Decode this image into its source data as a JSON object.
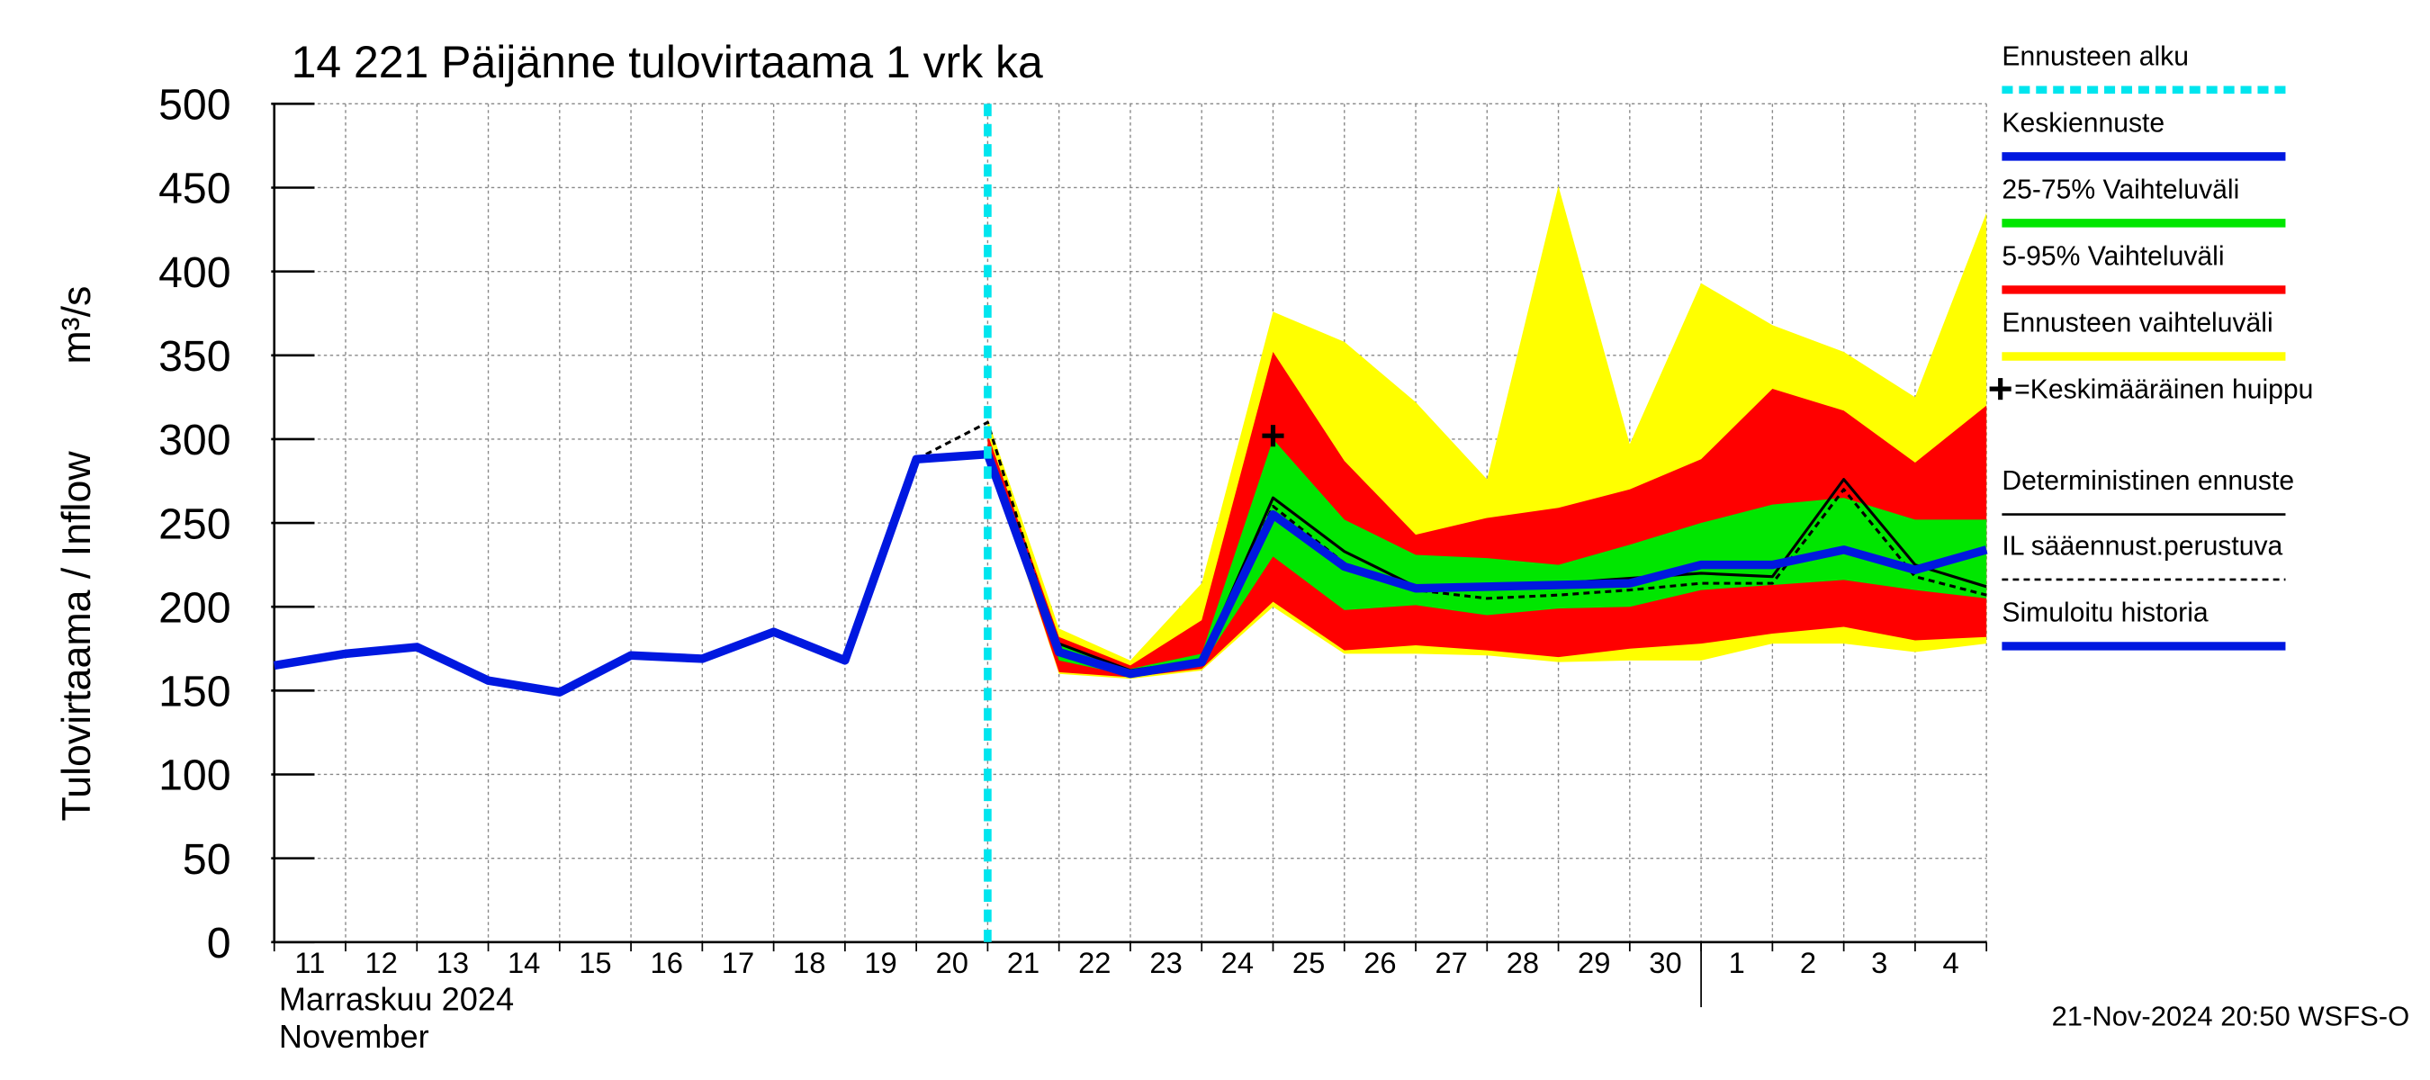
{
  "chart_data": {
    "type": "line",
    "title": "14 221 Päijänne tulovirtaama 1 vrk ka",
    "y_label": "Tulovirtaama / Inflow",
    "y_unit": "m³/s",
    "x_month_labels": [
      "Marraskuu 2024",
      "November"
    ],
    "footer": "21-Nov-2024 20:50 WSFS-O",
    "categories": [
      "11",
      "12",
      "13",
      "14",
      "15",
      "16",
      "17",
      "18",
      "19",
      "20",
      "21",
      "22",
      "23",
      "24",
      "25",
      "26",
      "27",
      "28",
      "29",
      "30",
      "1",
      "2",
      "3",
      "4",
      null
    ],
    "ylim": [
      0,
      500
    ],
    "yticks": [
      0,
      50,
      100,
      150,
      200,
      250,
      300,
      350,
      400,
      450,
      500
    ],
    "grid": true,
    "forecast_start": {
      "label": "Ennusteen alku",
      "x": 10,
      "color": "#00e5ee"
    },
    "peak": {
      "label": "=Keskimääräinen huippu",
      "x": 14,
      "value": 302
    },
    "series": [
      {
        "name": "Keskiennuste",
        "color": "#0018e0",
        "style": "thick",
        "values": [
          null,
          null,
          null,
          null,
          null,
          null,
          null,
          null,
          null,
          null,
          291,
          173,
          160,
          167,
          255,
          224,
          211,
          212,
          213,
          214,
          225,
          225,
          234,
          222,
          234
        ]
      },
      {
        "name": "25-75% Vaihteluväli",
        "color": "#00e600",
        "style": "band",
        "lower": [
          null,
          null,
          null,
          null,
          null,
          null,
          null,
          null,
          null,
          null,
          291,
          168,
          159,
          165,
          230,
          198,
          201,
          195,
          199,
          200,
          210,
          213,
          216,
          210,
          205
        ],
        "upper": [
          null,
          null,
          null,
          null,
          null,
          null,
          null,
          null,
          null,
          null,
          296,
          178,
          163,
          172,
          300,
          252,
          231,
          229,
          225,
          237,
          250,
          261,
          265,
          252,
          252
        ]
      },
      {
        "name": "5-95% Vaihteluväli",
        "color": "#ff0000",
        "style": "band",
        "lower": [
          null,
          null,
          null,
          null,
          null,
          null,
          null,
          null,
          null,
          null,
          290,
          161,
          158,
          163,
          203,
          174,
          177,
          174,
          170,
          175,
          178,
          184,
          188,
          180,
          182
        ],
        "upper": [
          null,
          null,
          null,
          null,
          null,
          null,
          null,
          null,
          null,
          null,
          303,
          182,
          165,
          192,
          352,
          287,
          243,
          253,
          259,
          270,
          288,
          330,
          317,
          286,
          320
        ]
      },
      {
        "name": "Ennusteen vaihteluväli",
        "color": "#ffff00",
        "style": "band",
        "lower": [
          null,
          null,
          null,
          null,
          null,
          null,
          null,
          null,
          null,
          null,
          290,
          160,
          157,
          162,
          200,
          172,
          172,
          171,
          167,
          168,
          168,
          178,
          178,
          173,
          178
        ],
        "upper": [
          null,
          null,
          null,
          null,
          null,
          null,
          null,
          null,
          null,
          null,
          312,
          187,
          168,
          214,
          376,
          358,
          322,
          276,
          451,
          297,
          393,
          368,
          352,
          325,
          435
        ]
      },
      {
        "name": "Deterministinen ennuste",
        "color": "#000000",
        "style": "thin",
        "values": [
          null,
          null,
          null,
          null,
          null,
          null,
          null,
          null,
          null,
          null,
          295,
          178,
          162,
          168,
          265,
          233,
          212,
          212,
          214,
          217,
          220,
          218,
          276,
          225,
          212
        ]
      },
      {
        "name": "IL sääennust.perustuva",
        "color": "#000000",
        "style": "dashed",
        "values": [
          null,
          null,
          null,
          null,
          null,
          null,
          null,
          null,
          null,
          288,
          310,
          172,
          160,
          167,
          260,
          226,
          210,
          205,
          207,
          210,
          214,
          214,
          270,
          218,
          207
        ]
      },
      {
        "name": "Simuloitu historia",
        "color": "#0018e0",
        "style": "thick",
        "values": [
          165,
          172,
          176,
          156,
          149,
          171,
          169,
          185,
          168,
          288,
          291,
          null,
          null,
          null,
          null,
          null,
          null,
          null,
          null,
          null,
          null,
          null,
          null,
          null,
          null
        ]
      }
    ]
  }
}
